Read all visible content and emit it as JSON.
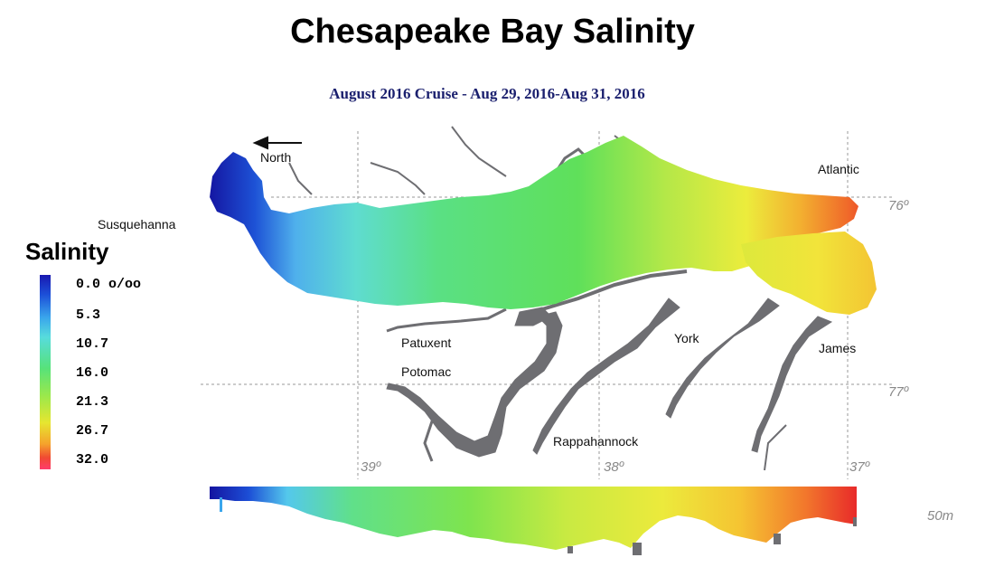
{
  "title": "Chesapeake Bay Salinity",
  "subtitle": "August 2016 Cruise - Aug 29, 2016-Aug 31, 2016",
  "legend": {
    "title": "Salinity",
    "labels": [
      "0.0 o/oo",
      "5.3",
      "10.7",
      "16.0",
      "21.3",
      "26.7",
      "32.0"
    ]
  },
  "places": {
    "north": "North",
    "susquehanna": "Susquehanna",
    "atlantic": "Atlantic",
    "patuxent": "Patuxent",
    "potomac": "Potomac",
    "york": "York",
    "james": "James",
    "rappahannock": "Rappahannock"
  },
  "coordinates": {
    "lon_76": "76º",
    "lon_77": "77º",
    "lat_39": "39º",
    "lat_38": "38º",
    "lat_37": "37º",
    "depth": "50m"
  },
  "colors": {
    "fresh": "#1919b0",
    "mid": "#57e27a",
    "salty": "#f04a32",
    "land_river": "#6e6e72",
    "grid": "#9a9a9a"
  }
}
